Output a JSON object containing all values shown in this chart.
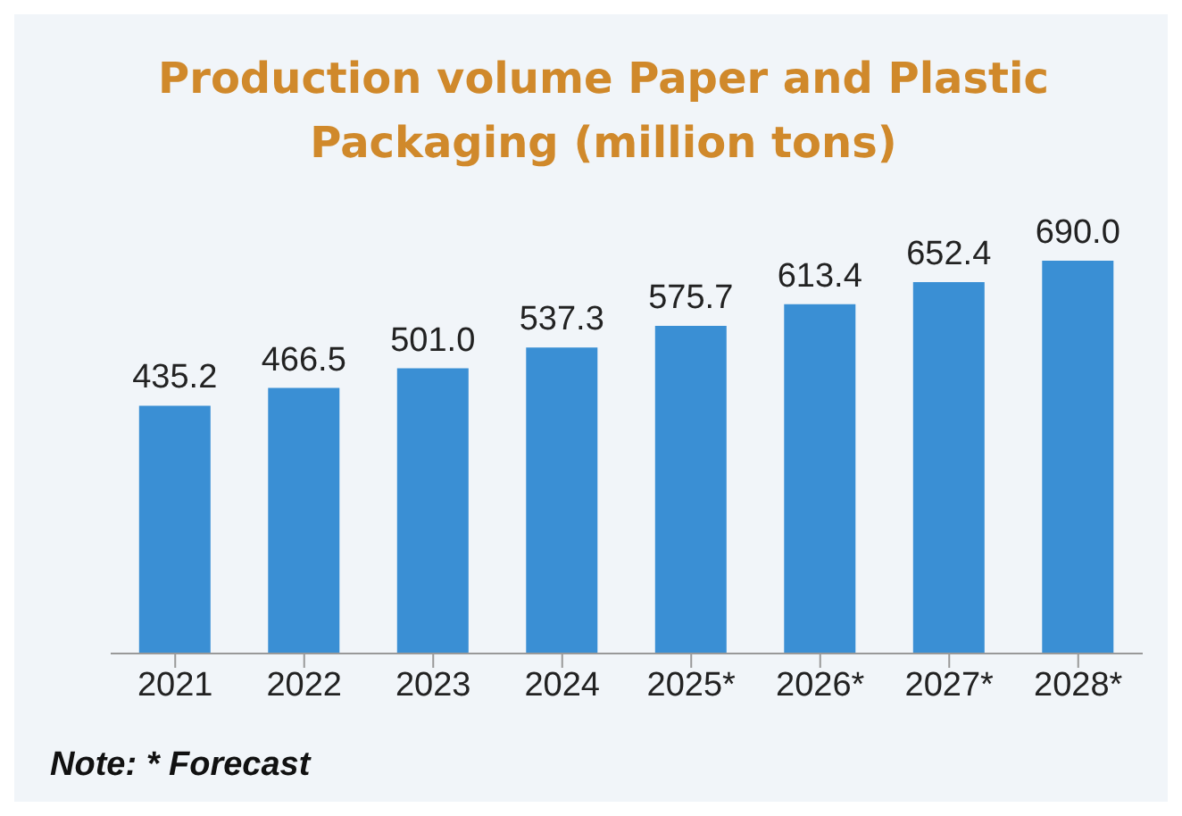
{
  "chart_data": {
    "type": "bar",
    "title": "Production volume Paper and Plastic Packaging (million tons)",
    "categories": [
      "2021",
      "2022",
      "2023",
      "2024",
      "2025*",
      "2026*",
      "2027*",
      "2028*"
    ],
    "values": [
      435.2,
      466.5,
      501.0,
      537.3,
      575.7,
      613.4,
      652.4,
      690.0
    ],
    "value_labels": [
      "435.2",
      "466.5",
      "501.0",
      "537.3",
      "575.7",
      "613.4",
      "652.4",
      "690.0"
    ],
    "color": "#3a8fd4",
    "annotations": [
      "Note: * Forecast"
    ]
  }
}
